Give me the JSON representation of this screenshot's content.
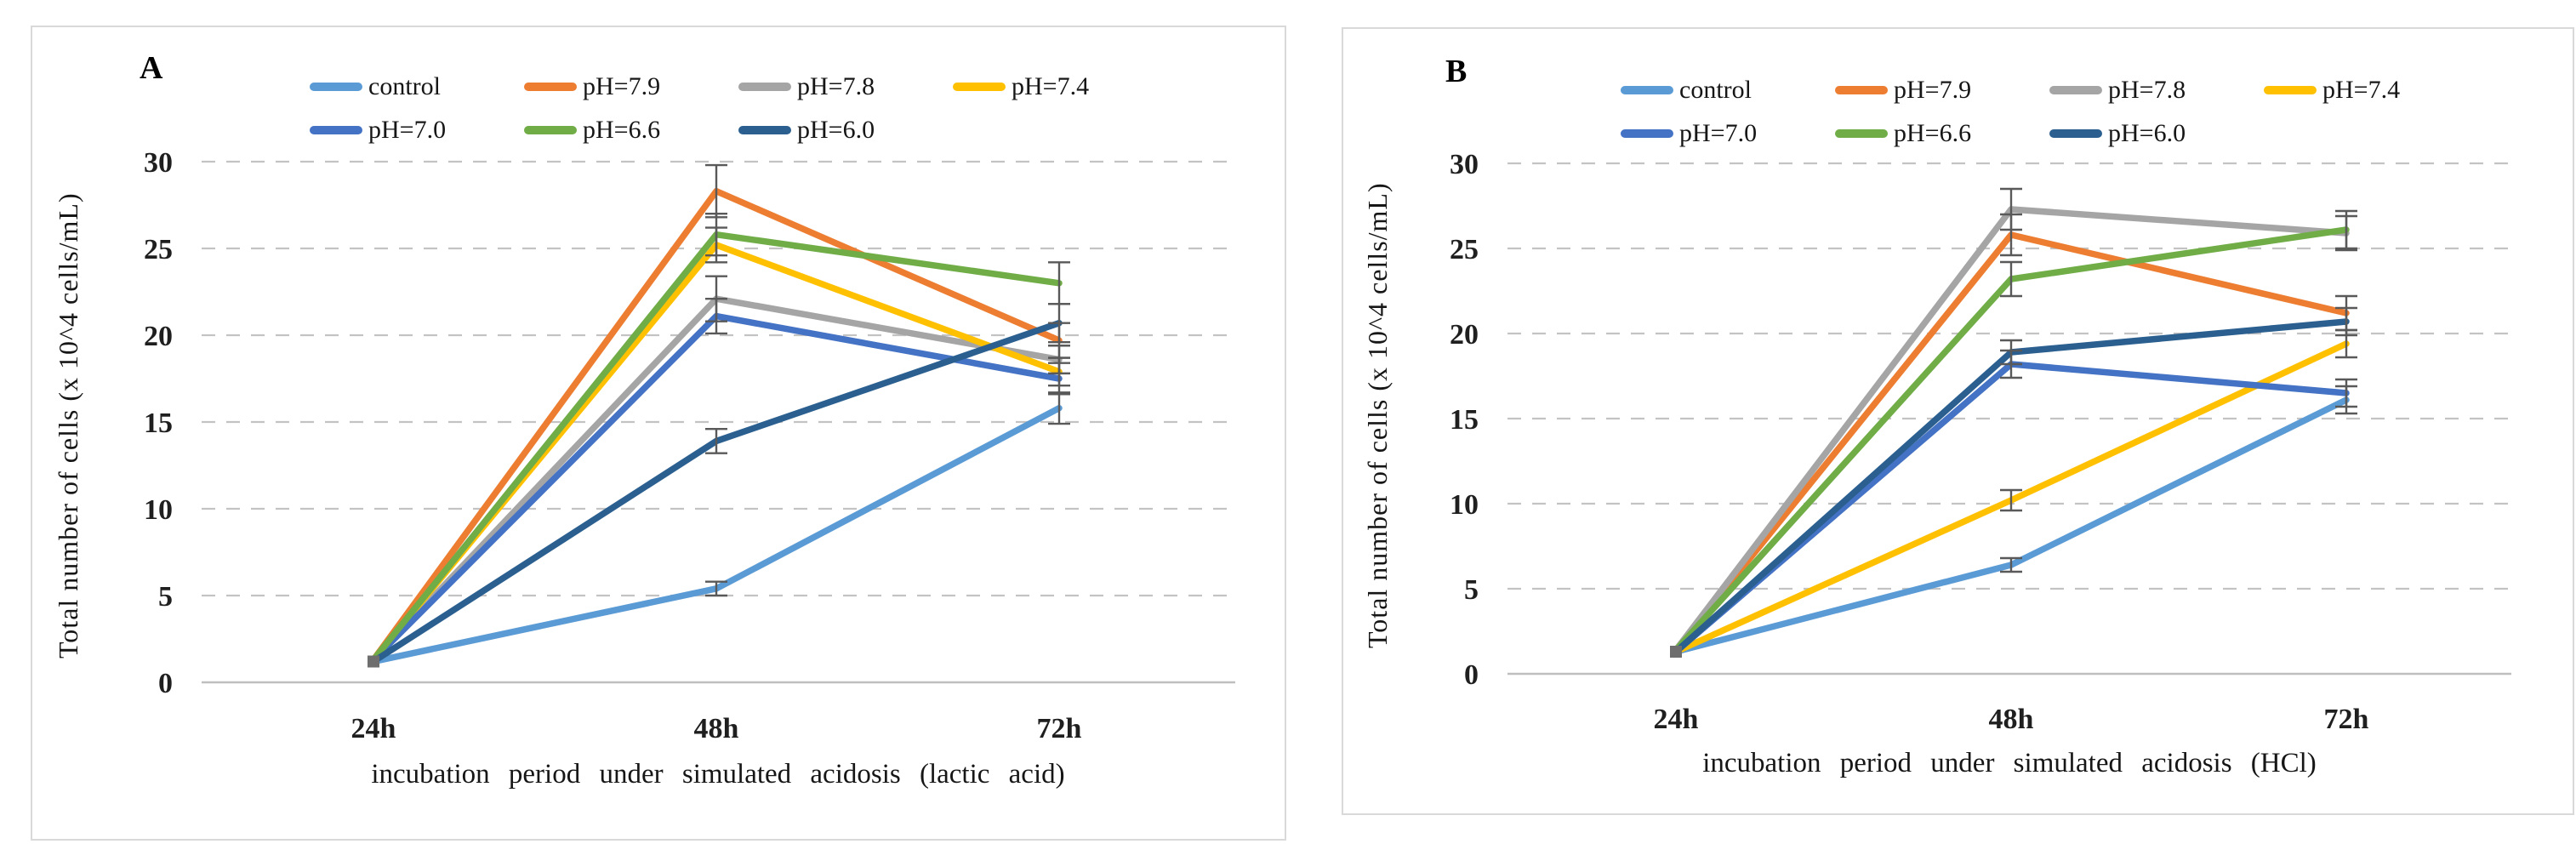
{
  "figure": {
    "background": "#ffffff",
    "error_bar_color": "#595959",
    "gridline_color": "#c3c3c3",
    "axisline_color": "#bfbfbf",
    "marker_color": "#6e6e6e"
  },
  "chart_data": [
    {
      "type": "line",
      "panel_label": "A",
      "xlabel": "incubation period under simulated acidosis (lactic acid)",
      "ylabel": "Total number of cells (x 10^4 cells/mL)",
      "categories": [
        "24h",
        "48h",
        "72h"
      ],
      "ylim": [
        0,
        30
      ],
      "yticks": [
        0,
        5,
        10,
        15,
        20,
        25,
        30
      ],
      "grid": true,
      "legend_position": "top",
      "error_bars": true,
      "series": [
        {
          "name": "control",
          "color": "#5B9BD5",
          "values": [
            1.2,
            5.4,
            15.8
          ],
          "errors": [
            0,
            0.4,
            0.9
          ]
        },
        {
          "name": "pH=7.9",
          "color": "#ED7D31",
          "values": [
            1.3,
            28.3,
            19.7
          ],
          "errors": [
            0,
            1.5,
            1.0
          ]
        },
        {
          "name": "pH=7.8",
          "color": "#A5A5A5",
          "values": [
            1.3,
            22.1,
            18.6
          ],
          "errors": [
            0,
            1.3,
            0.8
          ]
        },
        {
          "name": "pH=7.4",
          "color": "#FFC000",
          "values": [
            1.3,
            25.2,
            17.9
          ],
          "errors": [
            0,
            1.0,
            0.8
          ]
        },
        {
          "name": "pH=7.0",
          "color": "#4472C4",
          "values": [
            1.3,
            21.1,
            17.5
          ],
          "errors": [
            0,
            1.0,
            0.9
          ]
        },
        {
          "name": "pH=6.6",
          "color": "#70AD47",
          "values": [
            1.3,
            25.8,
            23.0
          ],
          "errors": [
            0,
            1.2,
            1.2
          ]
        },
        {
          "name": "pH=6.0",
          "color": "#2A5F8F",
          "values": [
            1.2,
            13.9,
            20.7
          ],
          "errors": [
            0,
            0.7,
            1.1
          ]
        }
      ]
    },
    {
      "type": "line",
      "panel_label": "B",
      "xlabel": "incubation period under simulated acidosis (HCl)",
      "ylabel": "Total number of cells (x 10^4 cells/mL)",
      "categories": [
        "24h",
        "48h",
        "72h"
      ],
      "ylim": [
        0,
        30
      ],
      "yticks": [
        0,
        5,
        10,
        15,
        20,
        25,
        30
      ],
      "grid": true,
      "legend_position": "top",
      "error_bars": true,
      "series": [
        {
          "name": "control",
          "color": "#5B9BD5",
          "values": [
            1.3,
            6.4,
            16.1
          ],
          "errors": [
            0,
            0.4,
            0.8
          ]
        },
        {
          "name": "pH=7.9",
          "color": "#ED7D31",
          "values": [
            1.4,
            25.8,
            21.2
          ],
          "errors": [
            0,
            1.2,
            1.0
          ]
        },
        {
          "name": "pH=7.8",
          "color": "#A5A5A5",
          "values": [
            1.4,
            27.3,
            25.9
          ],
          "errors": [
            0,
            1.2,
            1.0
          ]
        },
        {
          "name": "pH=7.4",
          "color": "#FFC000",
          "values": [
            1.3,
            10.2,
            19.4
          ],
          "errors": [
            0,
            0.6,
            0.8
          ]
        },
        {
          "name": "pH=7.0",
          "color": "#4472C4",
          "values": [
            1.3,
            18.2,
            16.5
          ],
          "errors": [
            0,
            0.8,
            0.8
          ]
        },
        {
          "name": "pH=6.6",
          "color": "#70AD47",
          "values": [
            1.4,
            23.2,
            26.1
          ],
          "errors": [
            0,
            1.0,
            1.1
          ]
        },
        {
          "name": "pH=6.0",
          "color": "#2A5F8F",
          "values": [
            1.3,
            18.9,
            20.7
          ],
          "errors": [
            0,
            0.7,
            0.8
          ]
        }
      ]
    }
  ]
}
